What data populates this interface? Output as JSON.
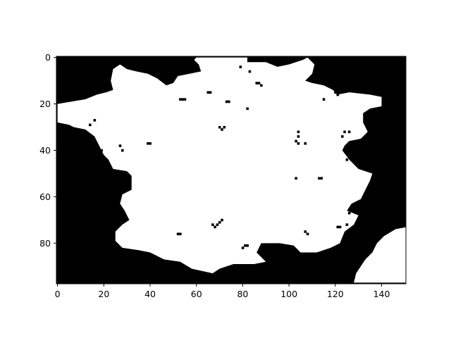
{
  "chart_data": {
    "type": "heatmap",
    "title": "",
    "xlabel": "",
    "ylabel": "",
    "colormap": "binary (0 = black, 1 = white)",
    "grid": false,
    "legend": "none",
    "xlim": [
      -0.5,
      150.5
    ],
    "ylim": [
      97.5,
      -0.5
    ],
    "x_ticks": [
      0,
      20,
      40,
      60,
      80,
      100,
      120,
      140
    ],
    "y_ticks": [
      0,
      20,
      40,
      60,
      80
    ],
    "x_tick_labels": [
      "0",
      "20",
      "40",
      "60",
      "80",
      "100",
      "120",
      "140"
    ],
    "y_tick_labels": [
      "0",
      "20",
      "40",
      "60",
      "80"
    ],
    "image_rows": 98,
    "image_cols": 151,
    "colors": {
      "background": "#000000",
      "foreground": "#ffffff",
      "axes": "#000000"
    },
    "regions": [
      {
        "name": "main",
        "value": 1,
        "outline": [
          [
            60,
            0
          ],
          [
            82,
            0
          ],
          [
            82,
            2
          ],
          [
            90,
            2
          ],
          [
            95,
            4
          ],
          [
            100,
            3
          ],
          [
            106,
            1
          ],
          [
            108,
            0
          ],
          [
            111,
            3
          ],
          [
            110,
            7
          ],
          [
            107,
            10
          ],
          [
            110,
            11
          ],
          [
            115,
            12
          ],
          [
            119,
            14
          ],
          [
            121,
            16
          ],
          [
            126,
            15
          ],
          [
            135,
            16
          ],
          [
            140,
            17
          ],
          [
            140,
            21
          ],
          [
            135,
            22
          ],
          [
            132,
            24
          ],
          [
            132,
            28
          ],
          [
            134,
            32
          ],
          [
            131,
            35
          ],
          [
            126,
            36
          ],
          [
            124,
            38
          ],
          [
            123,
            40
          ],
          [
            126,
            44
          ],
          [
            130,
            48
          ],
          [
            136,
            50
          ],
          [
            135,
            53
          ],
          [
            133,
            57
          ],
          [
            131,
            61
          ],
          [
            127,
            63
          ],
          [
            125,
            66
          ],
          [
            130,
            68
          ],
          [
            128,
            72
          ],
          [
            124,
            75
          ],
          [
            122,
            80
          ],
          [
            118,
            82
          ],
          [
            112,
            84
          ],
          [
            105,
            84
          ],
          [
            102,
            81
          ],
          [
            96,
            80
          ],
          [
            88,
            80
          ],
          [
            86,
            84
          ],
          [
            90,
            88
          ],
          [
            85,
            89
          ],
          [
            76,
            89
          ],
          [
            70,
            91
          ],
          [
            67,
            93
          ],
          [
            58,
            91
          ],
          [
            53,
            88
          ],
          [
            46,
            87
          ],
          [
            40,
            84
          ],
          [
            35,
            83
          ],
          [
            28,
            82
          ],
          [
            25,
            79
          ],
          [
            25,
            75
          ],
          [
            28,
            72
          ],
          [
            31,
            70
          ],
          [
            29,
            66
          ],
          [
            27,
            63
          ],
          [
            28,
            59
          ],
          [
            32,
            57
          ],
          [
            32,
            51
          ],
          [
            30,
            49
          ],
          [
            24,
            48
          ],
          [
            22,
            44
          ],
          [
            20,
            42
          ],
          [
            18,
            38
          ],
          [
            16,
            34
          ],
          [
            12,
            31
          ],
          [
            7,
            30
          ],
          [
            5,
            29
          ],
          [
            0,
            28
          ],
          [
            0,
            20
          ],
          [
            6,
            19
          ],
          [
            12,
            18
          ],
          [
            17,
            16
          ],
          [
            21,
            15
          ],
          [
            24,
            14
          ],
          [
            23,
            10
          ],
          [
            24,
            5
          ],
          [
            27,
            3
          ],
          [
            30,
            5
          ],
          [
            34,
            6
          ],
          [
            39,
            7
          ],
          [
            43,
            9
          ],
          [
            47,
            12
          ],
          [
            50,
            11
          ],
          [
            52,
            8
          ],
          [
            57,
            7
          ],
          [
            62,
            6
          ],
          [
            61,
            3
          ],
          [
            59,
            1
          ]
        ]
      },
      {
        "name": "bottom-right",
        "value": 1,
        "outline": [
          [
            151,
            73
          ],
          [
            146,
            74
          ],
          [
            141,
            77
          ],
          [
            138,
            80
          ],
          [
            136,
            84
          ],
          [
            133,
            87
          ],
          [
            131,
            90
          ],
          [
            129,
            93
          ],
          [
            128,
            97
          ],
          [
            151,
            97
          ]
        ]
      }
    ],
    "holes": [
      [
        27,
        38
      ],
      [
        28,
        40
      ],
      [
        39,
        37
      ],
      [
        40,
        37
      ],
      [
        53,
        18
      ],
      [
        54,
        18
      ],
      [
        55,
        18
      ],
      [
        65,
        15
      ],
      [
        66,
        15
      ],
      [
        73,
        19
      ],
      [
        74,
        19
      ],
      [
        82,
        22
      ],
      [
        86,
        11
      ],
      [
        87,
        11
      ],
      [
        88,
        12
      ],
      [
        70,
        30
      ],
      [
        71,
        31
      ],
      [
        72,
        30
      ],
      [
        104,
        32
      ],
      [
        104,
        34
      ],
      [
        103,
        36
      ],
      [
        104,
        37
      ],
      [
        107,
        37
      ],
      [
        103,
        52
      ],
      [
        113,
        52
      ],
      [
        114,
        52
      ],
      [
        115,
        18
      ],
      [
        120,
        15
      ],
      [
        121,
        16
      ],
      [
        124,
        32
      ],
      [
        126,
        32
      ],
      [
        125,
        44
      ],
      [
        129,
        46
      ],
      [
        127,
        66
      ],
      [
        126,
        67
      ],
      [
        125,
        72
      ],
      [
        121,
        73
      ],
      [
        122,
        73
      ],
      [
        67,
        72
      ],
      [
        68,
        73
      ],
      [
        69,
        72
      ],
      [
        70,
        71
      ],
      [
        71,
        70
      ],
      [
        52,
        76
      ],
      [
        53,
        76
      ],
      [
        81,
        81
      ],
      [
        82,
        81
      ],
      [
        80,
        82
      ],
      [
        107,
        75
      ],
      [
        108,
        76
      ],
      [
        16,
        27
      ],
      [
        14,
        29
      ],
      [
        19,
        40
      ],
      [
        79,
        4
      ],
      [
        83,
        6
      ],
      [
        123,
        34
      ]
    ]
  }
}
